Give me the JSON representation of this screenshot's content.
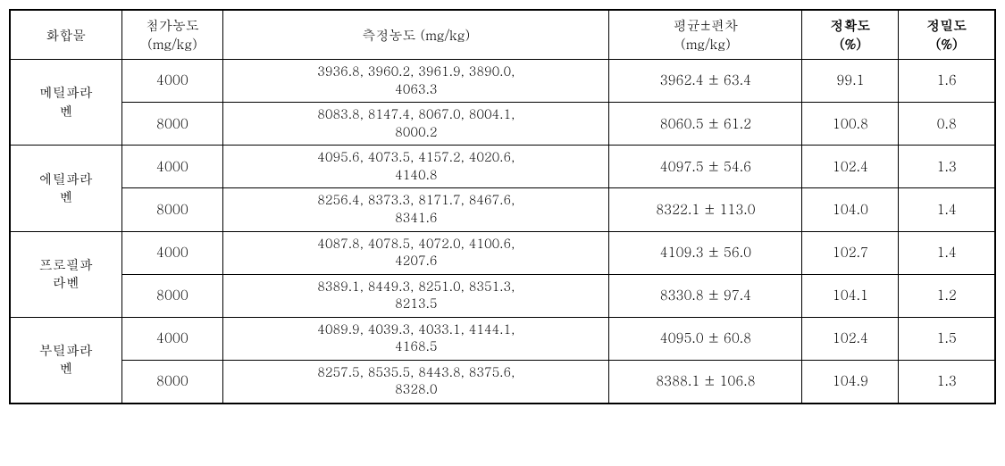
{
  "table": {
    "headers": {
      "compound": "화합물",
      "added_conc": "첨가농도\n(mg/kg)",
      "measured_conc": "측정농도 (mg/kg)",
      "mean_sd": "평균±편차\n(mg/kg)",
      "accuracy": "정확도\n(%)",
      "precision": "정밀도\n(%)"
    },
    "compounds": [
      {
        "name": "메틸파라\n벤",
        "rows": [
          {
            "added": "4000",
            "measured": "3936.8, 3960.2, 3961.9, 3890.0,\n4063.3",
            "mean_sd": "3962.4 ± 63.4",
            "accuracy": "99.1",
            "precision": "1.6"
          },
          {
            "added": "8000",
            "measured": "8083.8, 8147.4, 8067.0, 8004.1,\n8000.2",
            "mean_sd": "8060.5 ± 61.2",
            "accuracy": "100.8",
            "precision": "0.8"
          }
        ]
      },
      {
        "name": "에틸파라\n벤",
        "rows": [
          {
            "added": "4000",
            "measured": "4095.6, 4073.5, 4157.2, 4020.6,\n4140.8",
            "mean_sd": "4097.5 ± 54.6",
            "accuracy": "102.4",
            "precision": "1.3"
          },
          {
            "added": "8000",
            "measured": "8256.4, 8373.3, 8171.7, 8467.6,\n8341.6",
            "mean_sd": "8322.1 ± 113.0",
            "accuracy": "104.0",
            "precision": "1.4"
          }
        ]
      },
      {
        "name": "프로필파\n라벤",
        "rows": [
          {
            "added": "4000",
            "measured": "4087.8, 4078.5, 4072.0, 4100.6,\n4207.6",
            "mean_sd": "4109.3 ± 56.0",
            "accuracy": "102.7",
            "precision": "1.4"
          },
          {
            "added": "8000",
            "measured": "8389.1, 8449.3, 8251.0, 8351.3,\n8213.5",
            "mean_sd": "8330.8 ± 97.4",
            "accuracy": "104.1",
            "precision": "1.2"
          }
        ]
      },
      {
        "name": "부틸파라\n벤",
        "rows": [
          {
            "added": "4000",
            "measured": "4089.9, 4039.3, 4033.1, 4144.1,\n4168.5",
            "mean_sd": "4095.0 ± 60.8",
            "accuracy": "102.4",
            "precision": "1.5"
          },
          {
            "added": "8000",
            "measured": "8257.5, 8535.5, 8443.8, 8375.6,\n8328.0",
            "mean_sd": "8388.1 ± 106.8",
            "accuracy": "104.9",
            "precision": "1.3"
          }
        ]
      }
    ]
  }
}
